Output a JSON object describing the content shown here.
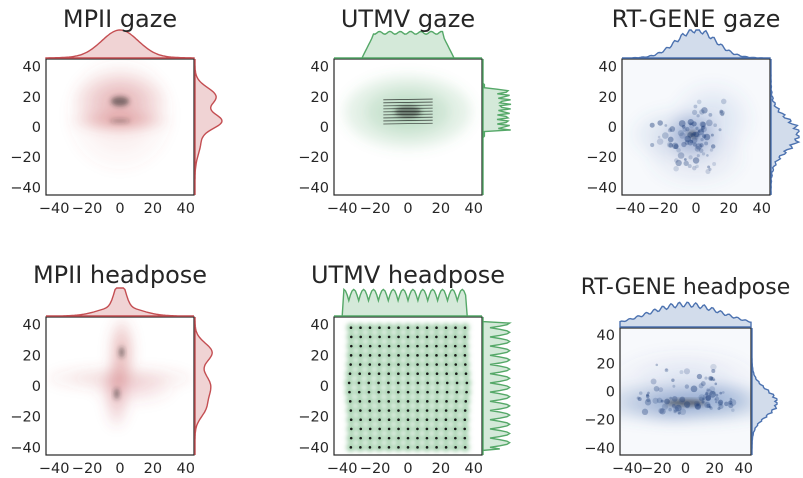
{
  "chart_data": [
    {
      "type": "heatmap",
      "title": "MPII gaze",
      "color": "#c44e52",
      "xlim": [
        -45,
        45
      ],
      "ylim": [
        -45,
        45
      ],
      "xticks": [
        -40,
        -20,
        0,
        20,
        40
      ],
      "yticks": [
        -40,
        -20,
        0,
        20,
        40
      ],
      "density_blobs": [
        {
          "x": 0,
          "y": 4,
          "sx": 12,
          "sy": 2,
          "w": 1.0
        },
        {
          "x": 0,
          "y": 17,
          "sx": 11,
          "sy": 8,
          "w": 0.8
        },
        {
          "x": 0,
          "y": 8,
          "sx": 13,
          "sy": 15,
          "w": 0.25
        }
      ],
      "x_marginal": "unimodal, peak near 0, spread ±20",
      "y_marginal": "bimodal, peaks near 4 and 20"
    },
    {
      "type": "heatmap",
      "title": "UTMV gaze",
      "color": "#55a868",
      "xlim": [
        -45,
        45
      ],
      "ylim": [
        -45,
        45
      ],
      "xticks": [
        -40,
        -20,
        0,
        20,
        40
      ],
      "yticks": [
        -40,
        -20,
        0,
        20,
        40
      ],
      "density_blobs": [
        {
          "x": 0,
          "y": 10,
          "sx": 16,
          "sy": 10,
          "w": 1.0
        }
      ],
      "x_marginal": "flat plateau from -20 to 20",
      "y_marginal": "oscillating plateau from -2 to 25"
    },
    {
      "type": "heatmap",
      "title": "RT-GENE gaze",
      "color": "#4c72b0",
      "xlim": [
        -45,
        45
      ],
      "ylim": [
        -45,
        45
      ],
      "xticks": [
        -40,
        -20,
        0,
        20,
        40
      ],
      "yticks": [
        -40,
        -20,
        0,
        20,
        40
      ],
      "density_blobs": [
        {
          "x": -2,
          "y": -5,
          "sx": 6,
          "sy": 6,
          "w": 1.0
        },
        {
          "x": -15,
          "y": -5,
          "sx": 10,
          "sy": 7,
          "w": 0.4
        },
        {
          "x": 10,
          "y": 5,
          "sx": 10,
          "sy": 10,
          "w": 0.35
        },
        {
          "x": 0,
          "y": -20,
          "sx": 12,
          "sy": 8,
          "w": 0.3
        }
      ],
      "x_marginal": "unimodal, peak near 0",
      "y_marginal": "unimodal, peak near -5"
    },
    {
      "type": "heatmap",
      "title": "MPII headpose",
      "color": "#c44e52",
      "xlim": [
        -45,
        45
      ],
      "ylim": [
        -45,
        45
      ],
      "xticks": [
        -40,
        -20,
        0,
        20,
        40
      ],
      "yticks": [
        -40,
        -20,
        0,
        20,
        40
      ],
      "density_blobs": [
        {
          "x": 1,
          "y": 22,
          "sx": 3,
          "sy": 9,
          "w": 1.0
        },
        {
          "x": -2,
          "y": -5,
          "sx": 3,
          "sy": 9,
          "w": 0.8
        },
        {
          "x": 0,
          "y": 5,
          "sx": 18,
          "sy": 3,
          "w": 0.5
        },
        {
          "x": 8,
          "y": -2,
          "sx": 10,
          "sy": 4,
          "w": 0.35
        }
      ],
      "x_marginal": "sharp peak near 0",
      "y_marginal": "peaks near 20 and 0"
    },
    {
      "type": "heatmap",
      "title": "UTMV headpose",
      "color": "#55a868",
      "xlim": [
        -45,
        45
      ],
      "ylim": [
        -45,
        45
      ],
      "xticks": [
        -40,
        -20,
        0,
        20,
        40
      ],
      "yticks": [
        -40,
        -20,
        0,
        20,
        40
      ],
      "grid_points": {
        "x_start": -36,
        "x_step": 6,
        "x_count": 13,
        "y_start": -40,
        "y_step": 6,
        "y_count": 14
      },
      "x_marginal": "oscillating plateau from -40 to 35",
      "y_marginal": "oscillating plateau from -40 to 40"
    },
    {
      "type": "heatmap",
      "title": "RT-GENE headpose",
      "color": "#4c72b0",
      "xlim": [
        -45,
        45
      ],
      "ylim": [
        -45,
        45
      ],
      "xticks": [
        -40,
        -20,
        0,
        20,
        40
      ],
      "yticks": [
        -40,
        -20,
        0,
        20,
        40
      ],
      "density_blobs": [
        {
          "x": 0,
          "y": -8,
          "sx": 28,
          "sy": 6,
          "w": 1.0
        },
        {
          "x": 20,
          "y": -5,
          "sx": 10,
          "sy": 5,
          "w": 0.6
        },
        {
          "x": -10,
          "y": -10,
          "sx": 10,
          "sy": 5,
          "w": 0.5
        },
        {
          "x": 0,
          "y": 10,
          "sx": 20,
          "sy": 8,
          "w": 0.25
        }
      ],
      "x_marginal": "broad, slightly bumpy plateau",
      "y_marginal": "peak near -8"
    }
  ]
}
